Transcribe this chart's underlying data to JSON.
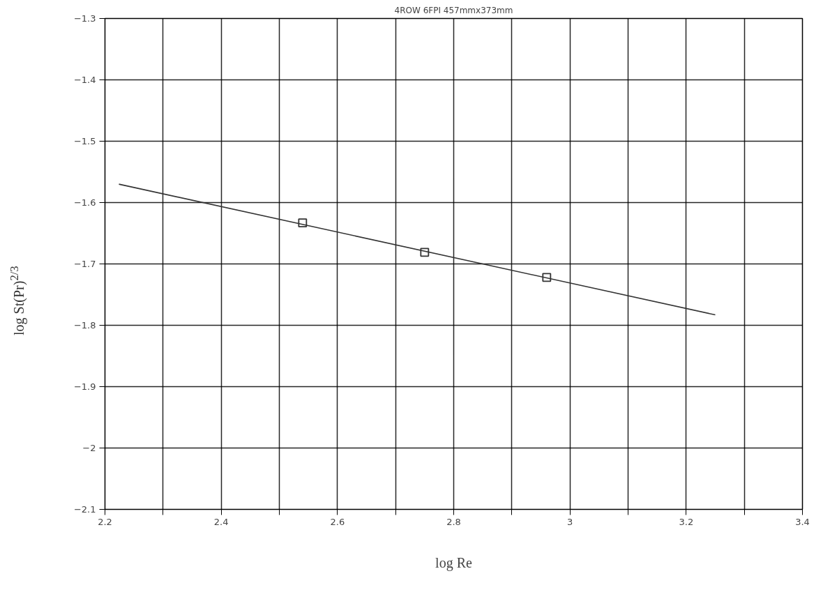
{
  "chart_data": {
    "type": "scatter",
    "title": "4ROW 6FPI 457mmx373mm",
    "xlabel": "log Re",
    "ylabel": "log St(Pr)$^{2/3}$",
    "series": [
      {
        "color": "#333333",
        "marker": "square",
        "x": [
          2.54,
          2.75,
          2.96
        ],
        "values": [
          -1.633,
          -1.681,
          -1.722
        ]
      },
      {
        "type": "line",
        "color": "#333333",
        "marker": "none",
        "line_style": "solid",
        "x": [
          2.224,
          3.25
        ],
        "values": [
          -1.57,
          -1.783
        ]
      }
    ],
    "xlim": [
      2.2,
      3.4
    ],
    "ylim": [
      -2.1,
      -1.3
    ],
    "xticks": [
      2.2,
      {
        "value": 2.3,
        "label": null
      },
      2.4,
      {
        "value": 2.5,
        "label": null
      },
      2.6,
      {
        "value": 2.7,
        "label": null
      },
      2.8,
      {
        "value": 2.9,
        "label": null
      },
      3,
      {
        "value": 3.1,
        "label": null
      },
      3.2,
      {
        "value": 3.3,
        "label": null
      },
      3.4
    ],
    "yticks": [
      -1.3,
      -1.4,
      -1.5,
      -1.6,
      -1.7,
      -1.8,
      -1.9,
      -2,
      -2.1
    ],
    "grid": true
  }
}
